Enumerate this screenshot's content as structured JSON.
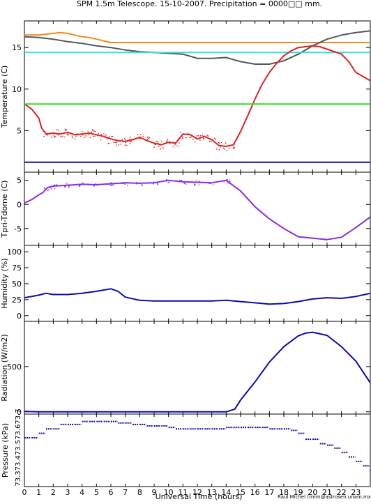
{
  "title": "SPM 1.5m Telescope. 15-10-2007. Precipitation = 0000□□ mm.",
  "xlabel": "Universal Time (hours)",
  "credit": "Raul Michel (rmm@astrosen.unam.mx)",
  "x_ticks": [
    "0",
    "1",
    "2",
    "3",
    "4",
    "5",
    "6",
    "7",
    "8",
    "9",
    "10",
    "11",
    "12",
    "13",
    "14",
    "15",
    "16",
    "17",
    "18",
    "19",
    "20",
    "21",
    "22",
    "23"
  ],
  "colors": {
    "orange": "#ee8a1c",
    "gray": "#555555",
    "cyan": "#33dddd",
    "red": "#dd2222",
    "green": "#33dd22",
    "blue": "#0a0ab0",
    "purple": "#8a2be2"
  },
  "chart_data": [
    {
      "type": "line",
      "name": "temperature",
      "ylabel": "Temperature (C)",
      "xlim": [
        0,
        24
      ],
      "ylim": [
        0,
        18.2
      ],
      "y_ticks": [
        "5",
        "10",
        "15"
      ],
      "grid": false,
      "series": [
        {
          "color": "orange",
          "x": [
            0,
            1,
            1.5,
            2,
            2.5,
            3,
            3.5,
            4,
            4.5,
            5,
            5.5,
            6,
            6.5,
            7,
            8,
            9,
            10,
            12,
            14,
            16,
            18,
            20,
            22,
            24
          ],
          "y": [
            16.5,
            16.5,
            16.6,
            16.7,
            16.8,
            16.7,
            16.5,
            16.3,
            16.2,
            16.0,
            15.8,
            15.6,
            15.6,
            15.6,
            15.6,
            15.6,
            15.6,
            15.6,
            15.6,
            15.6,
            15.6,
            15.6,
            15.6,
            15.6
          ]
        },
        {
          "color": "gray",
          "x": [
            0,
            1,
            2,
            3,
            4,
            5,
            6,
            7,
            8,
            9,
            10,
            11,
            12,
            13,
            14,
            15,
            16,
            17,
            18,
            19,
            20,
            21,
            22,
            23,
            24
          ],
          "y": [
            16.3,
            16.2,
            16.0,
            15.7,
            15.5,
            15.2,
            15.0,
            14.7,
            14.5,
            14.4,
            14.3,
            14.2,
            13.7,
            13.7,
            13.8,
            13.3,
            13.0,
            13.0,
            13.4,
            14.2,
            15.2,
            16.0,
            16.5,
            16.8,
            17.0
          ]
        },
        {
          "color": "cyan",
          "x": [
            0,
            24
          ],
          "y": [
            14.4,
            14.4
          ]
        },
        {
          "color": "red",
          "x": [
            0,
            0.5,
            1,
            1.2,
            1.5,
            2,
            2.5,
            3,
            3.5,
            4,
            4.5,
            5,
            5.5,
            6,
            6.5,
            7,
            7.5,
            8,
            8.5,
            9,
            9.5,
            10,
            10.5,
            11,
            11.5,
            12,
            12.5,
            13,
            13.5,
            14,
            14.5,
            15,
            15.5,
            16,
            16.5,
            17,
            17.5,
            18,
            18.5,
            19,
            19.5,
            20,
            20.5,
            21,
            21.5,
            22,
            22.5,
            23,
            23.5,
            24
          ],
          "y": [
            8.2,
            7.6,
            6.5,
            5.3,
            4.6,
            4.7,
            4.6,
            4.8,
            4.5,
            4.6,
            4.7,
            4.5,
            4.3,
            4.0,
            3.8,
            3.7,
            3.9,
            4.2,
            3.8,
            3.5,
            3.3,
            3.6,
            3.5,
            4.6,
            4.5,
            4.0,
            4.3,
            3.9,
            3.2,
            3.1,
            3.3,
            4.9,
            6.8,
            8.8,
            10.6,
            12.0,
            13.1,
            14.0,
            14.6,
            15.0,
            15.1,
            15.2,
            15.1,
            14.8,
            14.5,
            14.2,
            13.3,
            12.0,
            11.5,
            11.0
          ]
        },
        {
          "color": "green",
          "x": [
            0,
            24
          ],
          "y": [
            8.2,
            8.2
          ]
        },
        {
          "color": "blue",
          "x": [
            0,
            24
          ],
          "y": [
            1.2,
            1.2
          ]
        }
      ]
    },
    {
      "type": "line",
      "name": "tpri-tdome",
      "ylabel": "Tpri-Tdome (C)",
      "xlim": [
        0,
        24
      ],
      "ylim": [
        -8.5,
        6.7
      ],
      "y_ticks": [
        "-5",
        "0",
        "5"
      ],
      "series": [
        {
          "color": "purple",
          "x": [
            0,
            0.5,
            1,
            1.3,
            1.6,
            2,
            3,
            4,
            5,
            6,
            7,
            8,
            9,
            10,
            11,
            12,
            13,
            14,
            15,
            16,
            17,
            18,
            19,
            20,
            21,
            22,
            23,
            24
          ],
          "y": [
            0.3,
            1.0,
            2.0,
            2.5,
            3.5,
            3.8,
            4.0,
            4.2,
            4.1,
            4.3,
            4.5,
            4.4,
            4.5,
            5.0,
            4.7,
            4.6,
            4.5,
            5.0,
            2.8,
            -0.5,
            -3.0,
            -5.0,
            -6.7,
            -7.0,
            -7.3,
            -6.8,
            -4.8,
            -2.6
          ]
        }
      ]
    },
    {
      "type": "line",
      "name": "humidity",
      "ylabel": "Humidity (%)",
      "xlim": [
        0,
        24
      ],
      "ylim": [
        -9,
        110
      ],
      "y_ticks": [
        "0",
        "25",
        "50",
        "75",
        "100"
      ],
      "series": [
        {
          "color": "blue",
          "x": [
            0,
            1,
            1.5,
            2,
            3,
            4,
            5,
            6,
            6.5,
            7,
            8,
            9,
            10,
            11,
            12,
            13,
            14,
            15,
            16,
            17,
            18,
            19,
            20,
            21,
            22,
            23,
            24
          ],
          "y": [
            28,
            32,
            35,
            33,
            33,
            35,
            38,
            42,
            38,
            29,
            24,
            23,
            23,
            23,
            23,
            23,
            24,
            22,
            20,
            18,
            19,
            22,
            26,
            28,
            27,
            30,
            35
          ]
        }
      ]
    },
    {
      "type": "line",
      "name": "radiation",
      "ylabel": "Radiation (W/m2)",
      "xlim": [
        0,
        24
      ],
      "ylim": [
        -25,
        1000
      ],
      "y_ticks": [
        "0",
        "500"
      ],
      "series": [
        {
          "color": "blue",
          "x": [
            0,
            1,
            2,
            6,
            10,
            14,
            14.6,
            15,
            16,
            17,
            18,
            19,
            19.5,
            20,
            21,
            22,
            23,
            24
          ],
          "y": [
            5,
            0,
            0,
            0,
            0,
            0,
            30,
            130,
            330,
            550,
            720,
            840,
            870,
            880,
            845,
            720,
            560,
            320
          ]
        }
      ]
    },
    {
      "type": "scatter",
      "name": "pressure",
      "ylabel": "Pressure (kPa)",
      "xlim": [
        0,
        24
      ],
      "ylim": [
        73.29,
        73.78
      ],
      "y_tick_label": "73.373.473.573.673.7",
      "series": [
        {
          "color": "blue",
          "x": [
            0,
            0.5,
            1,
            1.5,
            2,
            2.5,
            3,
            3.5,
            4,
            4.5,
            5,
            5.5,
            6,
            6.5,
            7,
            7.5,
            8,
            8.5,
            9,
            9.5,
            10,
            10.5,
            11,
            11.5,
            12,
            12.5,
            13,
            13.5,
            14,
            14.5,
            15,
            15.5,
            16,
            16.5,
            17,
            17.5,
            18,
            18.5,
            19,
            19.5,
            20,
            20.5,
            21,
            21.5,
            22,
            22.5,
            23,
            23.5,
            24
          ],
          "y": [
            73.62,
            73.62,
            73.65,
            73.68,
            73.68,
            73.71,
            73.71,
            73.71,
            73.73,
            73.73,
            73.73,
            73.73,
            73.73,
            73.72,
            73.72,
            73.71,
            73.71,
            73.7,
            73.7,
            73.7,
            73.69,
            73.68,
            73.68,
            73.68,
            73.68,
            73.68,
            73.68,
            73.68,
            73.69,
            73.69,
            73.69,
            73.69,
            73.69,
            73.69,
            73.68,
            73.68,
            73.68,
            73.67,
            73.65,
            73.61,
            73.61,
            73.58,
            73.57,
            73.55,
            73.52,
            73.49,
            73.46,
            73.43,
            73.4
          ]
        }
      ]
    }
  ]
}
